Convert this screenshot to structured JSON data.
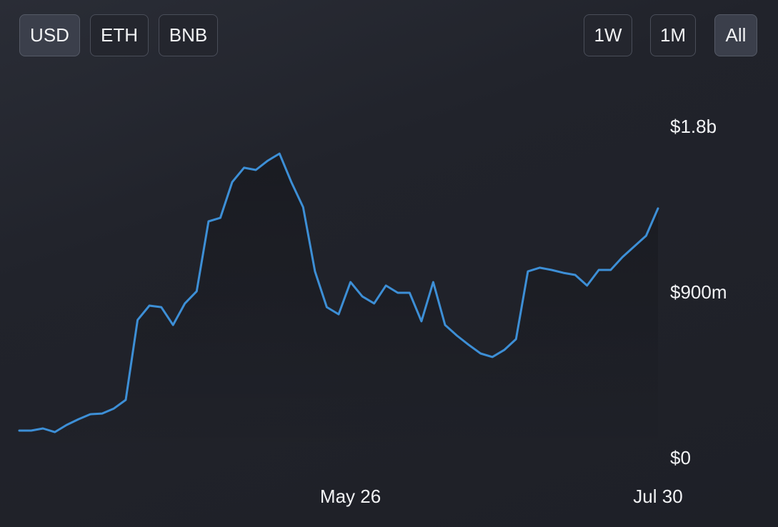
{
  "buttons": [
    {
      "label": "USD",
      "active": true
    },
    {
      "label": "ETH",
      "active": false
    },
    {
      "label": "BNB",
      "active": false
    },
    {
      "label": "1W",
      "active": false
    },
    {
      "label": "1M",
      "active": false
    },
    {
      "label": "All",
      "active": true
    }
  ],
  "chart_data": {
    "type": "line",
    "color": "#3d8fd6",
    "categories": [
      null,
      null,
      null,
      null,
      null,
      null,
      null,
      null,
      null,
      null,
      null,
      null,
      null,
      null,
      null,
      null,
      null,
      null,
      null,
      null,
      null,
      null,
      null,
      null,
      null,
      null,
      null,
      null,
      "May 26",
      null,
      null,
      null,
      null,
      null,
      null,
      null,
      null,
      null,
      null,
      null,
      null,
      null,
      null,
      null,
      null,
      null,
      null,
      null,
      null,
      null,
      null,
      null,
      null,
      null,
      "Jul 30"
    ],
    "values": [
      155000000,
      155000000,
      167000000,
      147000000,
      186000000,
      217000000,
      244000000,
      248000000,
      275000000,
      322000000,
      756000000,
      834000000,
      826000000,
      729000000,
      846000000,
      912000000,
      1292000000,
      1311000000,
      1505000000,
      1583000000,
      1571000000,
      1621000000,
      1660000000,
      1505000000,
      1369000000,
      1020000000,
      826000000,
      787000000,
      962000000,
      884000000,
      846000000,
      943000000,
      904000000,
      904000000,
      749000000,
      962000000,
      729000000,
      671000000,
      621000000,
      574000000,
      555000000,
      593000000,
      652000000,
      1020000000,
      1040000000,
      1028000000,
      1012000000,
      1001000000,
      943000000,
      1028000000,
      1028000000,
      1098000000,
      1156000000,
      1214000000,
      1362000000
    ],
    "ylim": [
      0,
      1800000000
    ],
    "yticks": [
      {
        "value": 0,
        "label": "$0"
      },
      {
        "value": 900000000,
        "label": "$900m"
      },
      {
        "value": 1800000000,
        "label": "$1.8b"
      }
    ]
  }
}
